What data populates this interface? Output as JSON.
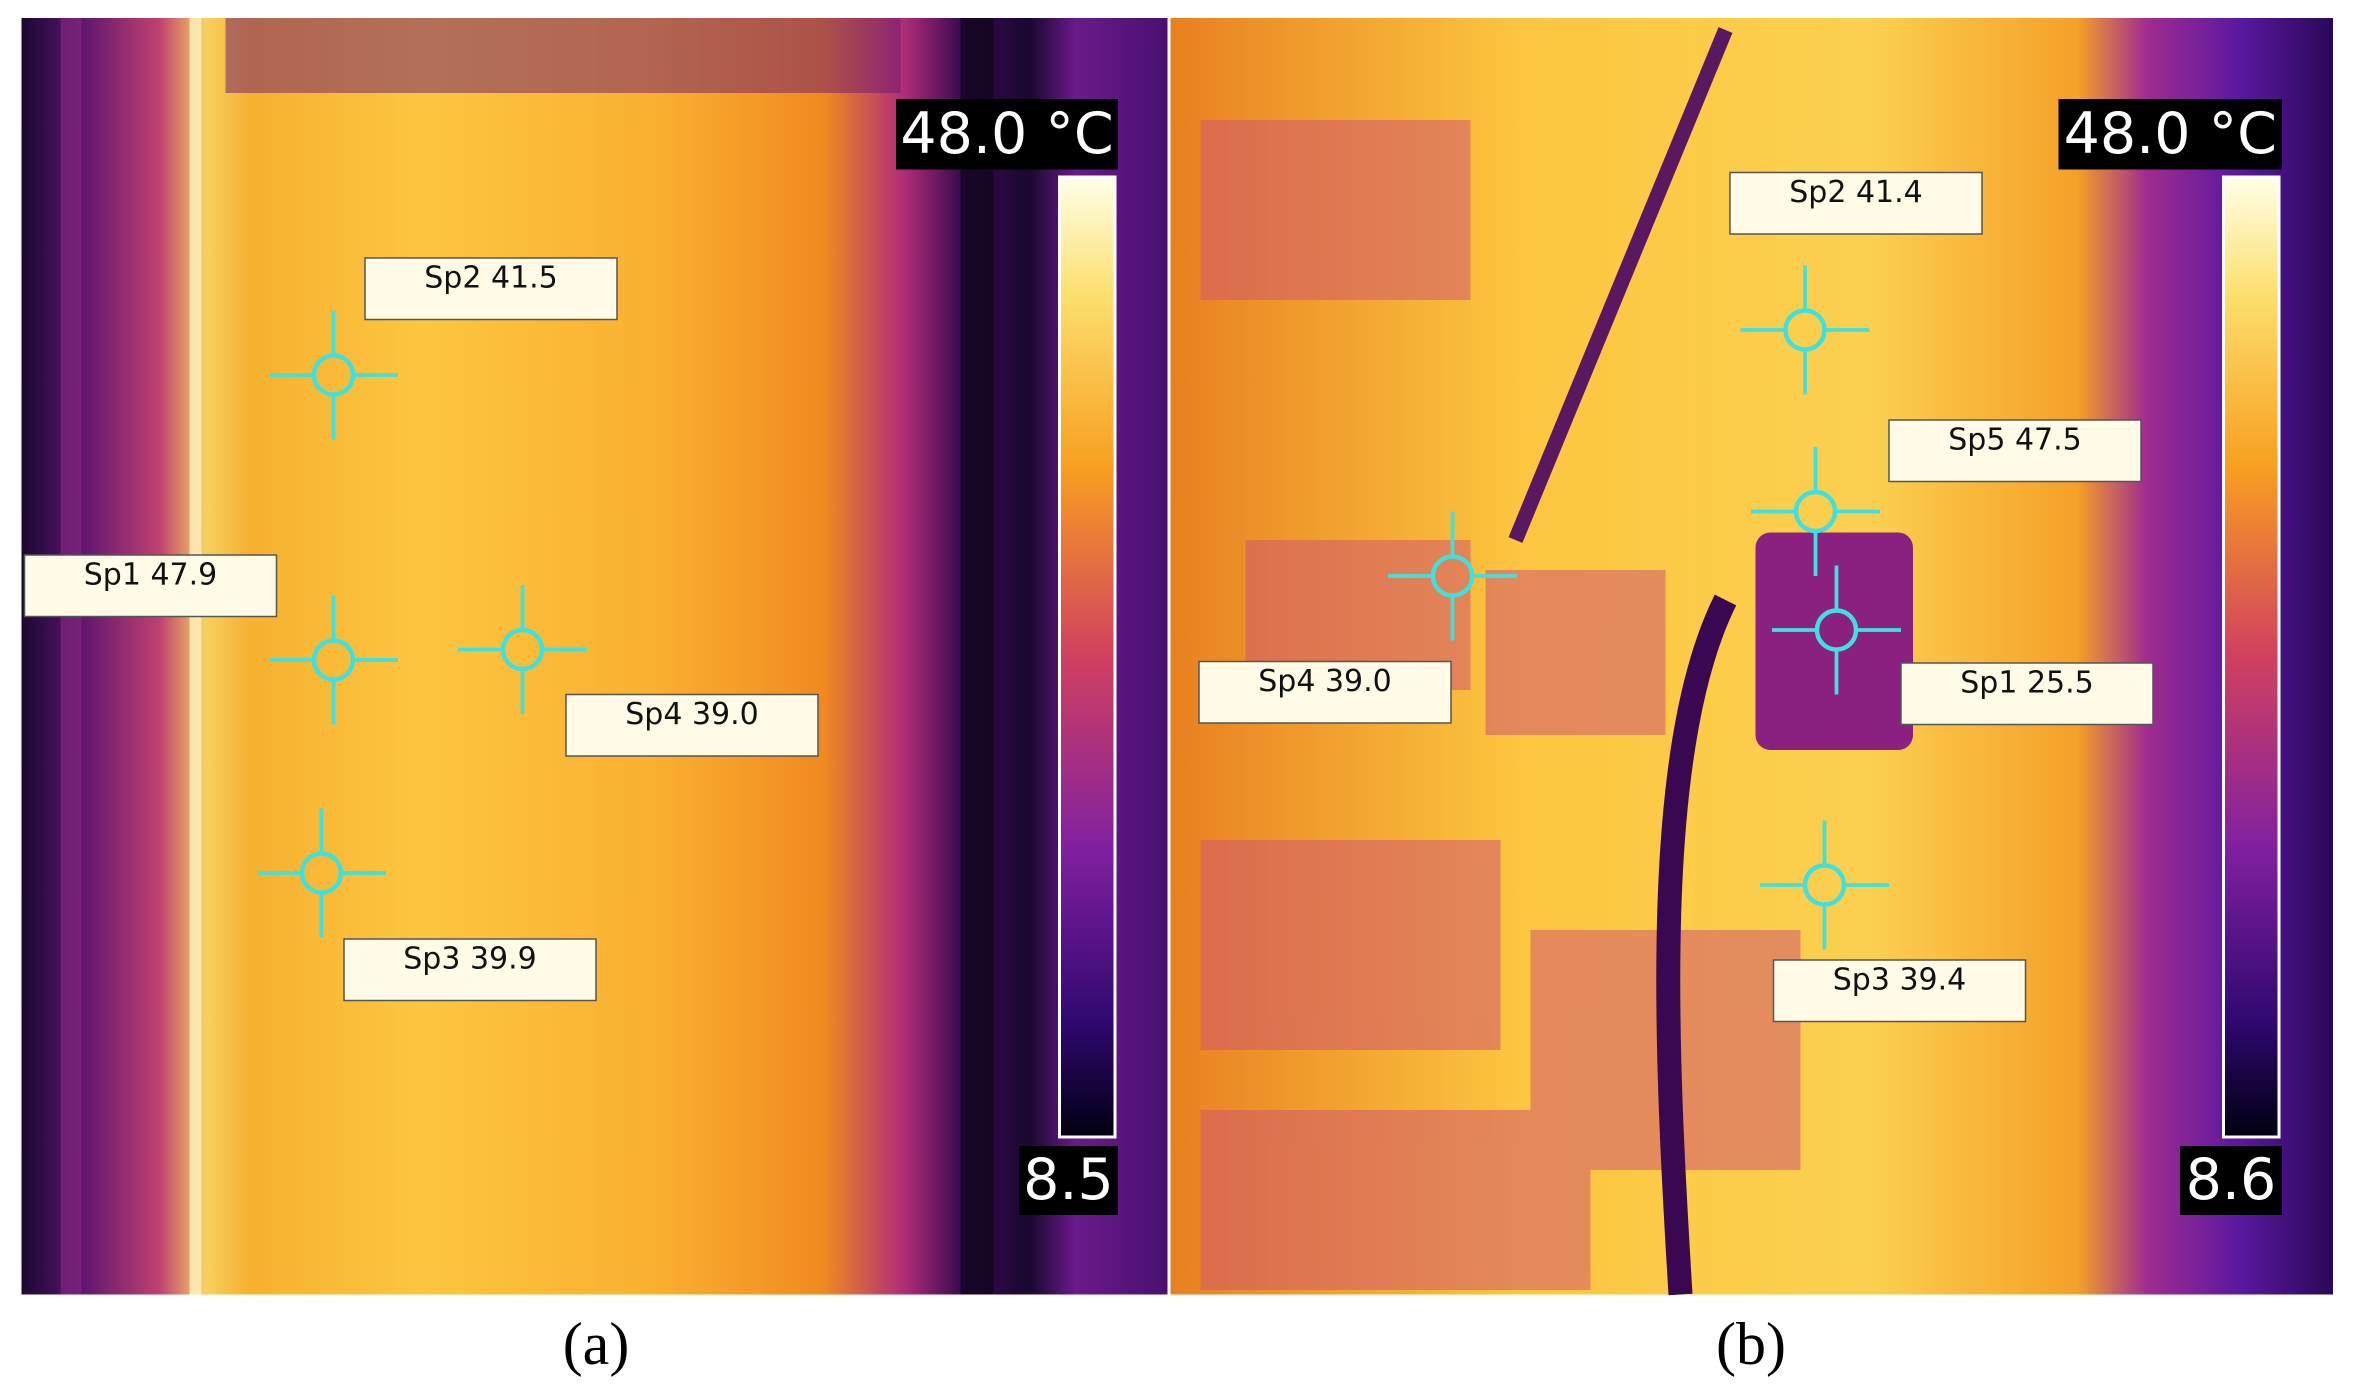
{
  "panels": [
    {
      "caption": "(a)",
      "scale_max": "48.0 °C",
      "scale_min": "8.5",
      "spots": [
        "Sp2 41.5",
        "Sp1 47.9",
        "Sp4 39.0",
        "Sp3 39.9"
      ]
    },
    {
      "caption": "(b)",
      "scale_max": "48.0 °C",
      "scale_min": "8.6",
      "spots": [
        "Sp2 41.4",
        "Sp5 47.5",
        "Sp4 39.0",
        "Sp1 25.5",
        "Sp3 39.4"
      ]
    }
  ]
}
